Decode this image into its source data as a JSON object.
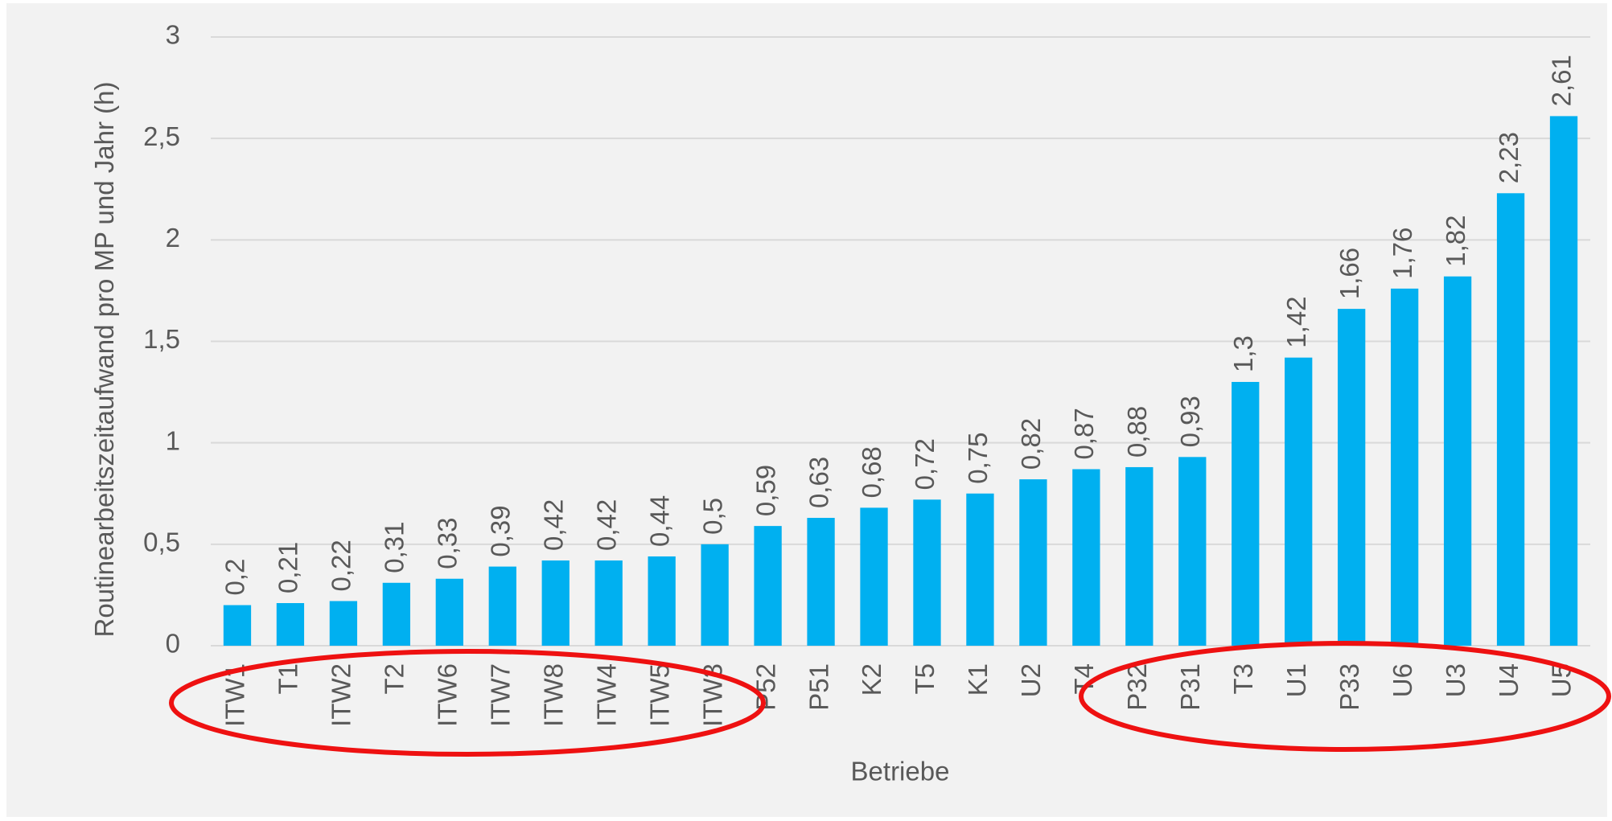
{
  "chart_data": {
    "type": "bar",
    "y_axis_label": "Routinearbeitszeitaufwand pro MP und Jahr (h)",
    "x_axis_label": "Betriebe",
    "categories": [
      "ITW1",
      "T1",
      "ITW2",
      "T2",
      "ITW6",
      "ITW7",
      "ITW8",
      "ITW4",
      "ITW5",
      "ITW3",
      "P52",
      "P51",
      "K2",
      "T5",
      "K1",
      "U2",
      "T4",
      "P32",
      "P31",
      "T3",
      "U1",
      "P33",
      "U6",
      "U3",
      "U4",
      "U5"
    ],
    "values": [
      0.2,
      0.21,
      0.22,
      0.31,
      0.33,
      0.39,
      0.42,
      0.42,
      0.44,
      0.5,
      0.59,
      0.63,
      0.68,
      0.72,
      0.75,
      0.82,
      0.87,
      0.88,
      0.93,
      1.3,
      1.42,
      1.66,
      1.76,
      1.82,
      2.23,
      2.61
    ],
    "value_labels": [
      "0,2",
      "0,21",
      "0,22",
      "0,31",
      "0,33",
      "0,39",
      "0,42",
      "0,42",
      "0,44",
      "0,5",
      "0,59",
      "0,63",
      "0,68",
      "0,72",
      "0,75",
      "0,82",
      "0,87",
      "0,88",
      "0,93",
      "1,3",
      "1,42",
      "1,66",
      "1,76",
      "1,82",
      "2,23",
      "2,61"
    ],
    "color": "#00b0f0",
    "ylim": [
      0,
      3
    ],
    "yticks": [
      0,
      {
        "value": 0.5,
        "label": "0,5"
      },
      1,
      {
        "value": 1.5,
        "label": "1,5"
      },
      2,
      {
        "value": 2.5,
        "label": "2,5"
      },
      3
    ],
    "grid": true
  }
}
